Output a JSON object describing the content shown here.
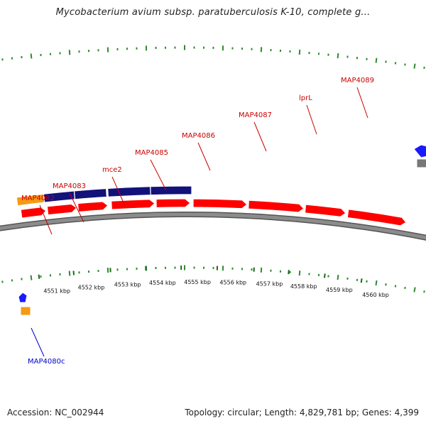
{
  "title": "Mycobacterium avium subsp. paratuberculosis K-10, complete g...",
  "footer": {
    "accession": "Accession: NC_002944",
    "summary": "Topology: circular; Length: 4,829,781 bp; Genes: 4,399"
  },
  "colors": {
    "backbone": "#8c8c8c",
    "forward_cds": "#ff0000",
    "reverse_cds": "#1a1aff",
    "operon_blue": "#12127a",
    "orange_feature": "#f59a14",
    "gc_ticks": "#2e8b2e",
    "label_red": "#cc0000",
    "label_blue": "#0000cc"
  },
  "ruler_labels": [
    "4551 kbp",
    "4552 kbp",
    "4553 kbp",
    "4554 kbp",
    "4555 kbp",
    "4556 kbp",
    "4557 kbp",
    "4558 kbp",
    "4559 kbp",
    "4560 kbp"
  ],
  "gene_labels": [
    {
      "text": "MAP4082",
      "strand": "forward"
    },
    {
      "text": "MAP4083",
      "strand": "forward"
    },
    {
      "text": "mce2",
      "strand": "forward"
    },
    {
      "text": "MAP4085",
      "strand": "forward"
    },
    {
      "text": "MAP4086",
      "strand": "forward"
    },
    {
      "text": "MAP4087",
      "strand": "forward"
    },
    {
      "text": "lprL",
      "strand": "forward"
    },
    {
      "text": "MAP4089",
      "strand": "forward"
    },
    {
      "text": "MAP4080c",
      "strand": "reverse"
    }
  ]
}
